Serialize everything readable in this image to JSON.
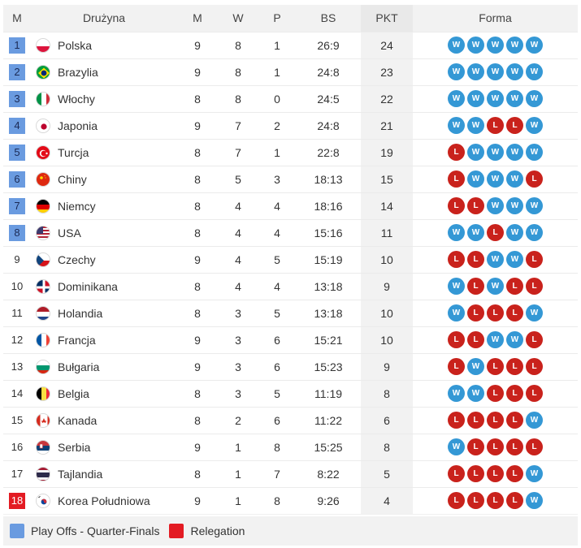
{
  "header": {
    "rank": "M",
    "team": "Drużyna",
    "played": "M",
    "won": "W",
    "lost": "P",
    "sets": "BS",
    "points": "PKT",
    "form": "Forma"
  },
  "colors": {
    "playoff": "#6a9be0",
    "relegation": "#e31b23",
    "win": "#3498d5",
    "loss": "#c9221c"
  },
  "rows": [
    {
      "rank": "1",
      "zone": "blue",
      "flag": "poland-flag",
      "team": "Polska",
      "m": "9",
      "w": "8",
      "p": "1",
      "bs": "26:9",
      "pkt": "24",
      "form": [
        "W",
        "W",
        "W",
        "W",
        "W"
      ]
    },
    {
      "rank": "2",
      "zone": "blue",
      "flag": "brazil-flag",
      "team": "Brazylia",
      "m": "9",
      "w": "8",
      "p": "1",
      "bs": "24:8",
      "pkt": "23",
      "form": [
        "W",
        "W",
        "W",
        "W",
        "W"
      ]
    },
    {
      "rank": "3",
      "zone": "blue",
      "flag": "italy-flag",
      "team": "Włochy",
      "m": "8",
      "w": "8",
      "p": "0",
      "bs": "24:5",
      "pkt": "22",
      "form": [
        "W",
        "W",
        "W",
        "W",
        "W"
      ]
    },
    {
      "rank": "4",
      "zone": "blue",
      "flag": "japan-flag",
      "team": "Japonia",
      "m": "9",
      "w": "7",
      "p": "2",
      "bs": "24:8",
      "pkt": "21",
      "form": [
        "W",
        "W",
        "L",
        "L",
        "W"
      ]
    },
    {
      "rank": "5",
      "zone": "blue",
      "flag": "turkey-flag",
      "team": "Turcja",
      "m": "8",
      "w": "7",
      "p": "1",
      "bs": "22:8",
      "pkt": "19",
      "form": [
        "L",
        "W",
        "W",
        "W",
        "W"
      ]
    },
    {
      "rank": "6",
      "zone": "blue",
      "flag": "china-flag",
      "team": "Chiny",
      "m": "8",
      "w": "5",
      "p": "3",
      "bs": "18:13",
      "pkt": "15",
      "form": [
        "L",
        "W",
        "W",
        "W",
        "L"
      ]
    },
    {
      "rank": "7",
      "zone": "blue",
      "flag": "germany-flag",
      "team": "Niemcy",
      "m": "8",
      "w": "4",
      "p": "4",
      "bs": "18:16",
      "pkt": "14",
      "form": [
        "L",
        "L",
        "W",
        "W",
        "W"
      ]
    },
    {
      "rank": "8",
      "zone": "blue",
      "flag": "usa-flag",
      "team": "USA",
      "m": "8",
      "w": "4",
      "p": "4",
      "bs": "15:16",
      "pkt": "11",
      "form": [
        "W",
        "W",
        "L",
        "W",
        "W"
      ]
    },
    {
      "rank": "9",
      "zone": "",
      "flag": "czech-flag",
      "team": "Czechy",
      "m": "9",
      "w": "4",
      "p": "5",
      "bs": "15:19",
      "pkt": "10",
      "form": [
        "L",
        "L",
        "W",
        "W",
        "L"
      ]
    },
    {
      "rank": "10",
      "zone": "",
      "flag": "dominican-flag",
      "team": "Dominikana",
      "m": "8",
      "w": "4",
      "p": "4",
      "bs": "13:18",
      "pkt": "9",
      "form": [
        "W",
        "L",
        "W",
        "L",
        "L"
      ]
    },
    {
      "rank": "11",
      "zone": "",
      "flag": "netherlands-flag",
      "team": "Holandia",
      "m": "8",
      "w": "3",
      "p": "5",
      "bs": "13:18",
      "pkt": "10",
      "form": [
        "W",
        "L",
        "L",
        "L",
        "W"
      ]
    },
    {
      "rank": "12",
      "zone": "",
      "flag": "france-flag",
      "team": "Francja",
      "m": "9",
      "w": "3",
      "p": "6",
      "bs": "15:21",
      "pkt": "10",
      "form": [
        "L",
        "L",
        "W",
        "W",
        "L"
      ]
    },
    {
      "rank": "13",
      "zone": "",
      "flag": "bulgaria-flag",
      "team": "Bułgaria",
      "m": "9",
      "w": "3",
      "p": "6",
      "bs": "15:23",
      "pkt": "9",
      "form": [
        "L",
        "W",
        "L",
        "L",
        "L"
      ]
    },
    {
      "rank": "14",
      "zone": "",
      "flag": "belgium-flag",
      "team": "Belgia",
      "m": "8",
      "w": "3",
      "p": "5",
      "bs": "11:19",
      "pkt": "8",
      "form": [
        "W",
        "W",
        "L",
        "L",
        "L"
      ]
    },
    {
      "rank": "15",
      "zone": "",
      "flag": "canada-flag",
      "team": "Kanada",
      "m": "8",
      "w": "2",
      "p": "6",
      "bs": "11:22",
      "pkt": "6",
      "form": [
        "L",
        "L",
        "L",
        "L",
        "W"
      ]
    },
    {
      "rank": "16",
      "zone": "",
      "flag": "serbia-flag",
      "team": "Serbia",
      "m": "9",
      "w": "1",
      "p": "8",
      "bs": "15:25",
      "pkt": "8",
      "form": [
        "W",
        "L",
        "L",
        "L",
        "L"
      ]
    },
    {
      "rank": "17",
      "zone": "",
      "flag": "thailand-flag",
      "team": "Tajlandia",
      "m": "8",
      "w": "1",
      "p": "7",
      "bs": "8:22",
      "pkt": "5",
      "form": [
        "L",
        "L",
        "L",
        "L",
        "W"
      ]
    },
    {
      "rank": "18",
      "zone": "red",
      "flag": "korea-flag",
      "team": "Korea Południowa",
      "m": "9",
      "w": "1",
      "p": "8",
      "bs": "9:26",
      "pkt": "4",
      "form": [
        "L",
        "L",
        "L",
        "L",
        "W"
      ]
    }
  ],
  "legend": [
    {
      "label": "Play Offs - Quarter-Finals",
      "color": "blue"
    },
    {
      "label": "Relegation",
      "color": "red"
    }
  ]
}
